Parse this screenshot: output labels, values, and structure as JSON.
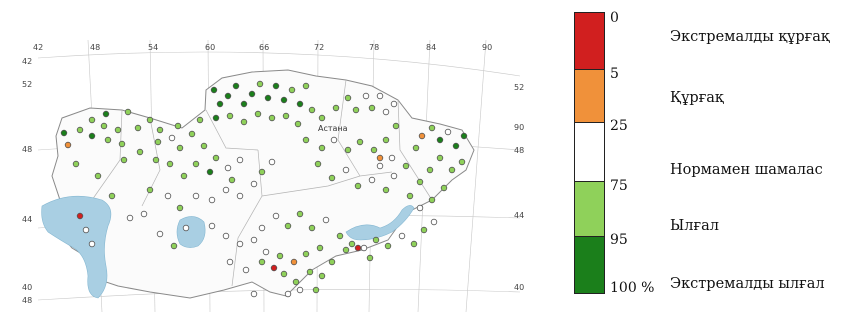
{
  "map": {
    "lon_labels": [
      "42",
      "48",
      "54",
      "60",
      "66",
      "72",
      "78",
      "84",
      "90"
    ],
    "lat_labels_left": [
      "52",
      "48",
      "44",
      "40",
      "48",
      "42"
    ],
    "lat_labels_right": [
      "52",
      "48",
      "44",
      "40",
      "90"
    ],
    "city_label": "Астана",
    "colors": {
      "extreme_dry": "#d11f1f",
      "dry": "#f0913a",
      "normal": "#ffffff",
      "wet": "#8fd15a",
      "extreme_wet": "#1b7f1b",
      "water": "#a9cfe3"
    }
  },
  "legend": {
    "ticks": [
      "0",
      "5",
      "25",
      "75",
      "95",
      "100 %"
    ],
    "categories": [
      {
        "label": "Экстремалды құрғақ",
        "color": "#d11f1f"
      },
      {
        "label": "Құрғақ",
        "color": "#f0913a"
      },
      {
        "label": "Нормамен шамалас",
        "color": "#ffffff"
      },
      {
        "label": "Ылғал",
        "color": "#8fd15a"
      },
      {
        "label": "Экстремалды ылғал",
        "color": "#1b7f1b"
      }
    ]
  }
}
